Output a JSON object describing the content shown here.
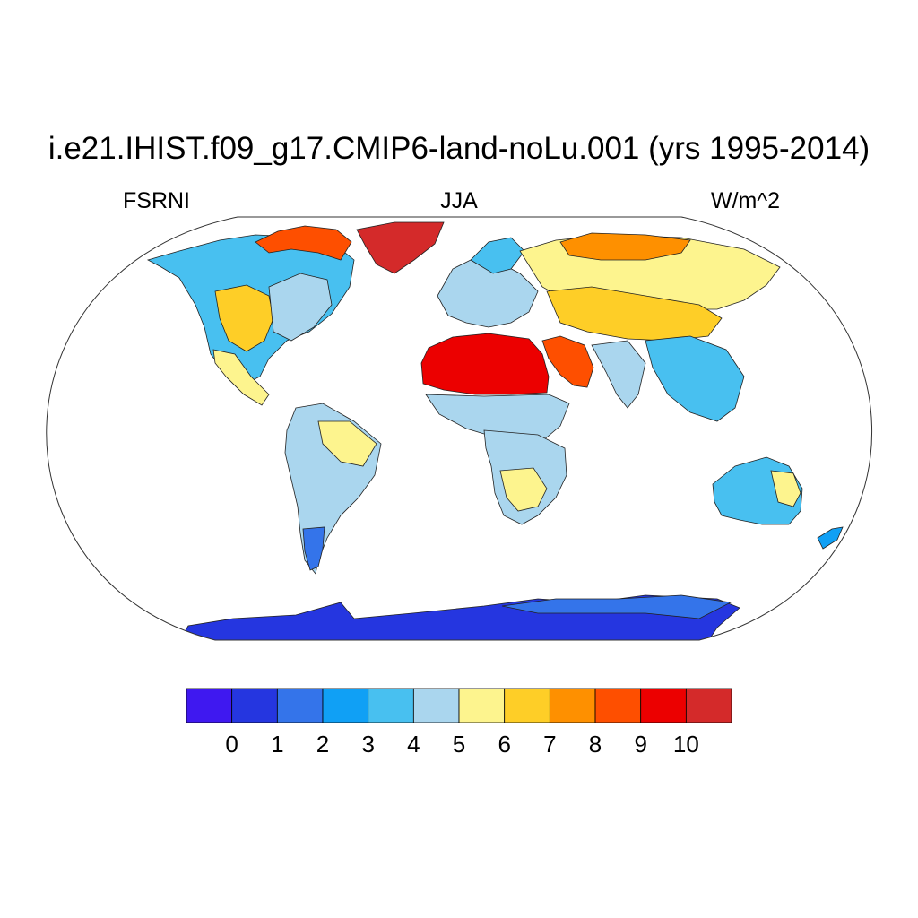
{
  "title": "i.e21.IHIST.f09_g17.CMIP6-land-noLu.001 (yrs 1995-2014)",
  "subtitles": {
    "left": "FSRNI",
    "center": "JJA",
    "right": "W/m^2"
  },
  "colorbar": {
    "colors": [
      "#3f18f0",
      "#2536e0",
      "#3474ea",
      "#10a0f5",
      "#48c0f0",
      "#aad6ee",
      "#fdf48e",
      "#fece27",
      "#fe9000",
      "#fe4f00",
      "#ec0000",
      "#d42a2a"
    ],
    "labels": [
      "0",
      "1",
      "2",
      "3",
      "4",
      "5",
      "6",
      "7",
      "8",
      "9",
      "10"
    ]
  },
  "regions": [
    {
      "id": "antarctica",
      "color": "#2536e0"
    },
    {
      "id": "antarctica-coast",
      "color": "#3474ea"
    },
    {
      "id": "greenland",
      "color": "#d42a2a"
    },
    {
      "id": "canada-arctic",
      "color": "#fe4f00"
    },
    {
      "id": "north-america",
      "color": "#48c0f0"
    },
    {
      "id": "us-west",
      "color": "#fece27"
    },
    {
      "id": "us-east",
      "color": "#aad6ee"
    },
    {
      "id": "mexico",
      "color": "#fdf48e"
    },
    {
      "id": "south-america",
      "color": "#aad6ee"
    },
    {
      "id": "brazil-east",
      "color": "#fdf48e"
    },
    {
      "id": "patagonia",
      "color": "#3474ea"
    },
    {
      "id": "europe",
      "color": "#aad6ee"
    },
    {
      "id": "scandinavia",
      "color": "#48c0f0"
    },
    {
      "id": "siberia",
      "color": "#fdf48e"
    },
    {
      "id": "arctic-russia",
      "color": "#fe9000"
    },
    {
      "id": "central-asia",
      "color": "#fece27"
    },
    {
      "id": "sahara",
      "color": "#ec0000"
    },
    {
      "id": "arabia",
      "color": "#fe4f00"
    },
    {
      "id": "sahel",
      "color": "#aad6ee"
    },
    {
      "id": "africa-south",
      "color": "#aad6ee"
    },
    {
      "id": "kalahari",
      "color": "#fdf48e"
    },
    {
      "id": "india",
      "color": "#aad6ee"
    },
    {
      "id": "se-asia",
      "color": "#48c0f0"
    },
    {
      "id": "australia",
      "color": "#48c0f0"
    },
    {
      "id": "australia-east",
      "color": "#fdf48e"
    },
    {
      "id": "new-zealand",
      "color": "#10a0f5"
    }
  ]
}
